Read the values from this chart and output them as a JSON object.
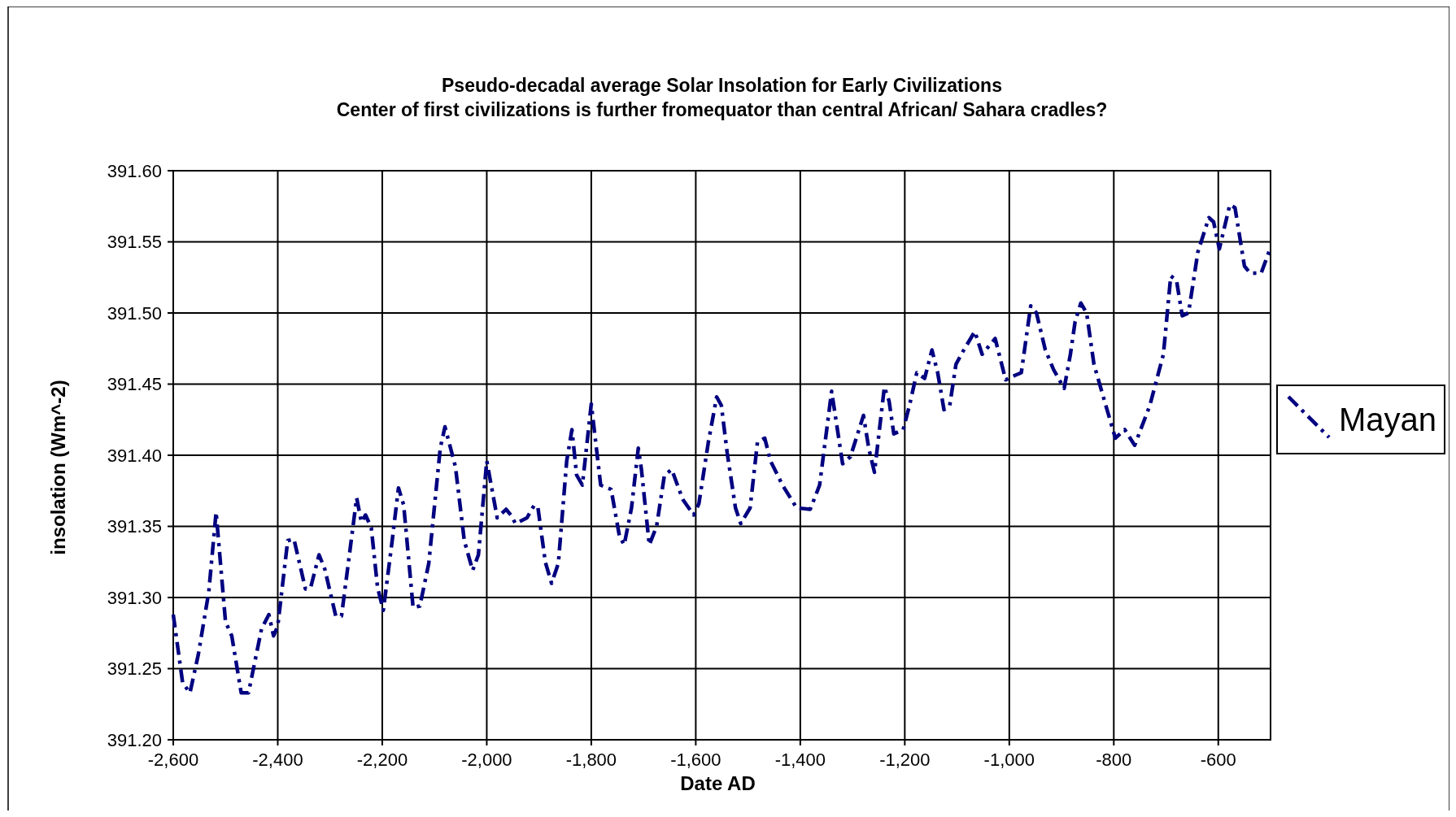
{
  "chart_data": {
    "type": "line",
    "title": "Pseudo-decadal average Solar Insolation for Early Civilizations",
    "subtitle": "Center of first civilizations is further fromequator than central African/ Sahara cradles?",
    "xlabel": "Date AD",
    "ylabel": "insolation (Wm^-2)",
    "xlim": [
      -2600,
      -500
    ],
    "ylim": [
      391.2,
      391.6
    ],
    "xticks": [
      {
        "value": -2600,
        "label": "-2,600"
      },
      {
        "value": -2400,
        "label": "-2,400"
      },
      {
        "value": -2200,
        "label": "-2,200"
      },
      {
        "value": -2000,
        "label": "-2,000"
      },
      {
        "value": -1800,
        "label": "-1,800"
      },
      {
        "value": -1600,
        "label": "-1,600"
      },
      {
        "value": -1400,
        "label": "-1,400"
      },
      {
        "value": -1200,
        "label": "-1,200"
      },
      {
        "value": -1000,
        "label": "-1,000"
      },
      {
        "value": -800,
        "label": "-800"
      },
      {
        "value": -600,
        "label": "-600"
      }
    ],
    "yticks": [
      {
        "value": 391.2,
        "label": "391.20"
      },
      {
        "value": 391.25,
        "label": "391.25"
      },
      {
        "value": 391.3,
        "label": "391.30"
      },
      {
        "value": 391.35,
        "label": "391.35"
      },
      {
        "value": 391.4,
        "label": "391.40"
      },
      {
        "value": 391.45,
        "label": "391.45"
      },
      {
        "value": 391.5,
        "label": "391.50"
      },
      {
        "value": 391.55,
        "label": "391.55"
      },
      {
        "value": 391.6,
        "label": "391.60"
      }
    ],
    "grid": true,
    "legend": "right",
    "line_style": "dashed",
    "marker": "none",
    "x": [
      -2600,
      -2582,
      -2568,
      -2552,
      -2532,
      -2518,
      -2500,
      -2488,
      -2470,
      -2456,
      -2431,
      -2417,
      -2408,
      -2400,
      -2381,
      -2369,
      -2347,
      -2337,
      -2321,
      -2310,
      -2289,
      -2278,
      -2265,
      -2249,
      -2240,
      -2232,
      -2221,
      -2209,
      -2198,
      -2182,
      -2169,
      -2159,
      -2141,
      -2128,
      -2111,
      -2089,
      -2080,
      -2060,
      -2043,
      -2027,
      -2016,
      -2000,
      -1980,
      -1963,
      -1954,
      -1945,
      -1923,
      -1909,
      -1902,
      -1888,
      -1876,
      -1863,
      -1847,
      -1837,
      -1828,
      -1817,
      -1800,
      -1782,
      -1762,
      -1746,
      -1737,
      -1723,
      -1710,
      -1704,
      -1689,
      -1675,
      -1660,
      -1646,
      -1625,
      -1604,
      -1594,
      -1576,
      -1560,
      -1551,
      -1540,
      -1524,
      -1514,
      -1496,
      -1482,
      -1468,
      -1457,
      -1434,
      -1407,
      -1381,
      -1363,
      -1340,
      -1333,
      -1319,
      -1304,
      -1279,
      -1269,
      -1258,
      -1239,
      -1230,
      -1221,
      -1203,
      -1191,
      -1177,
      -1162,
      -1148,
      -1137,
      -1125,
      -1114,
      -1102,
      -1087,
      -1066,
      -1052,
      -1027,
      -1007,
      -990,
      -977,
      -959,
      -948,
      -931,
      -915,
      -895,
      -883,
      -874,
      -863,
      -852,
      -838,
      -820,
      -797,
      -779,
      -760,
      -731,
      -705,
      -691,
      -680,
      -669,
      -657,
      -639,
      -618,
      -609,
      -598,
      -578,
      -568,
      -550,
      -539,
      -518,
      -500
    ],
    "series": [
      {
        "name": "Mayan",
        "color": "#000080",
        "values": [
          391.288,
          391.24,
          391.233,
          391.26,
          391.304,
          391.36,
          391.283,
          391.273,
          391.233,
          391.233,
          391.278,
          391.288,
          391.273,
          391.28,
          391.34,
          391.341,
          391.306,
          391.307,
          391.33,
          391.32,
          391.287,
          391.287,
          391.324,
          391.37,
          391.353,
          391.358,
          391.349,
          391.307,
          391.291,
          391.337,
          391.377,
          391.365,
          391.293,
          391.294,
          391.324,
          391.405,
          391.42,
          391.392,
          391.34,
          391.319,
          391.33,
          391.396,
          391.356,
          391.362,
          391.358,
          391.352,
          391.356,
          391.365,
          391.363,
          391.325,
          391.31,
          391.324,
          391.396,
          391.418,
          391.386,
          391.379,
          391.436,
          391.379,
          391.376,
          391.343,
          391.337,
          391.363,
          391.405,
          391.39,
          391.337,
          391.35,
          391.386,
          391.39,
          391.369,
          391.358,
          391.366,
          391.409,
          391.441,
          391.435,
          391.402,
          391.363,
          391.352,
          391.363,
          391.409,
          391.412,
          391.396,
          391.379,
          391.363,
          391.362,
          391.379,
          391.445,
          391.428,
          391.394,
          391.399,
          391.428,
          391.405,
          391.388,
          391.448,
          391.438,
          391.415,
          391.418,
          391.435,
          391.458,
          391.454,
          391.474,
          391.458,
          391.432,
          391.435,
          391.464,
          391.474,
          391.487,
          391.471,
          391.482,
          391.453,
          391.456,
          391.458,
          391.505,
          391.5,
          391.474,
          391.46,
          391.447,
          391.471,
          391.494,
          391.507,
          391.5,
          391.464,
          391.441,
          391.412,
          391.418,
          391.407,
          391.435,
          391.471,
          391.526,
          391.523,
          391.498,
          391.5,
          391.543,
          391.567,
          391.564,
          391.545,
          391.576,
          391.574,
          391.533,
          391.528,
          391.528,
          391.546
        ]
      }
    ]
  }
}
